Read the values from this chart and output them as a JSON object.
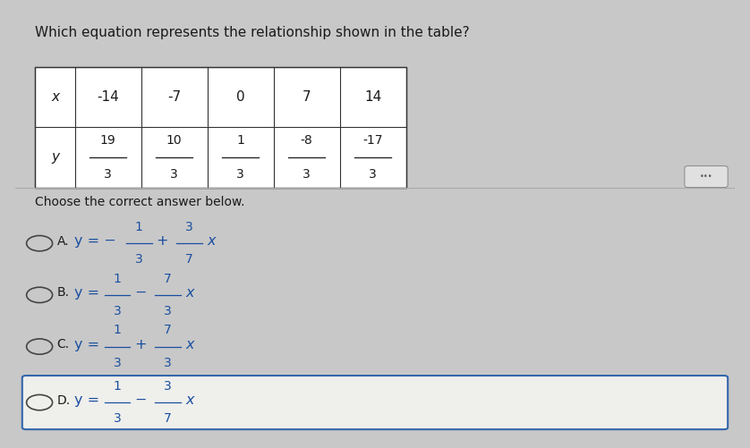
{
  "title": "Which equation represents the relationship shown in the table?",
  "table": {
    "x_label": "x",
    "y_label": "y",
    "x_values": [
      "-14",
      "-7",
      "0",
      "7",
      "14"
    ],
    "y_numerators": [
      "19",
      "10",
      "1",
      "-8",
      "-17"
    ],
    "y_denominators": [
      "3",
      "3",
      "3",
      "3",
      "3"
    ]
  },
  "section_label": "Choose the correct answer below.",
  "choices": [
    {
      "label": "A.",
      "prefix": "y = −",
      "frac1_num": "1",
      "frac1_den": "3",
      "op": "+",
      "frac2_num": "3",
      "frac2_den": "7"
    },
    {
      "label": "B.",
      "prefix": "y =",
      "frac1_num": "1",
      "frac1_den": "3",
      "op": "−",
      "frac2_num": "7",
      "frac2_den": "3"
    },
    {
      "label": "C.",
      "prefix": "y =",
      "frac1_num": "1",
      "frac1_den": "3",
      "op": "+",
      "frac2_num": "7",
      "frac2_den": "3"
    },
    {
      "label": "D.",
      "prefix": "y =",
      "frac1_num": "1",
      "frac1_den": "3",
      "op": "−",
      "frac2_num": "3",
      "frac2_den": "7"
    }
  ],
  "selected_choice": 3,
  "bg_color": "#c8c8c8",
  "panel_color": "#efefec",
  "table_bg": "#ffffff",
  "text_color": "#1a1a1a",
  "choice_color": "#1a4fa0",
  "title_fontsize": 11,
  "table_fontsize": 11,
  "choice_fontsize": 11
}
